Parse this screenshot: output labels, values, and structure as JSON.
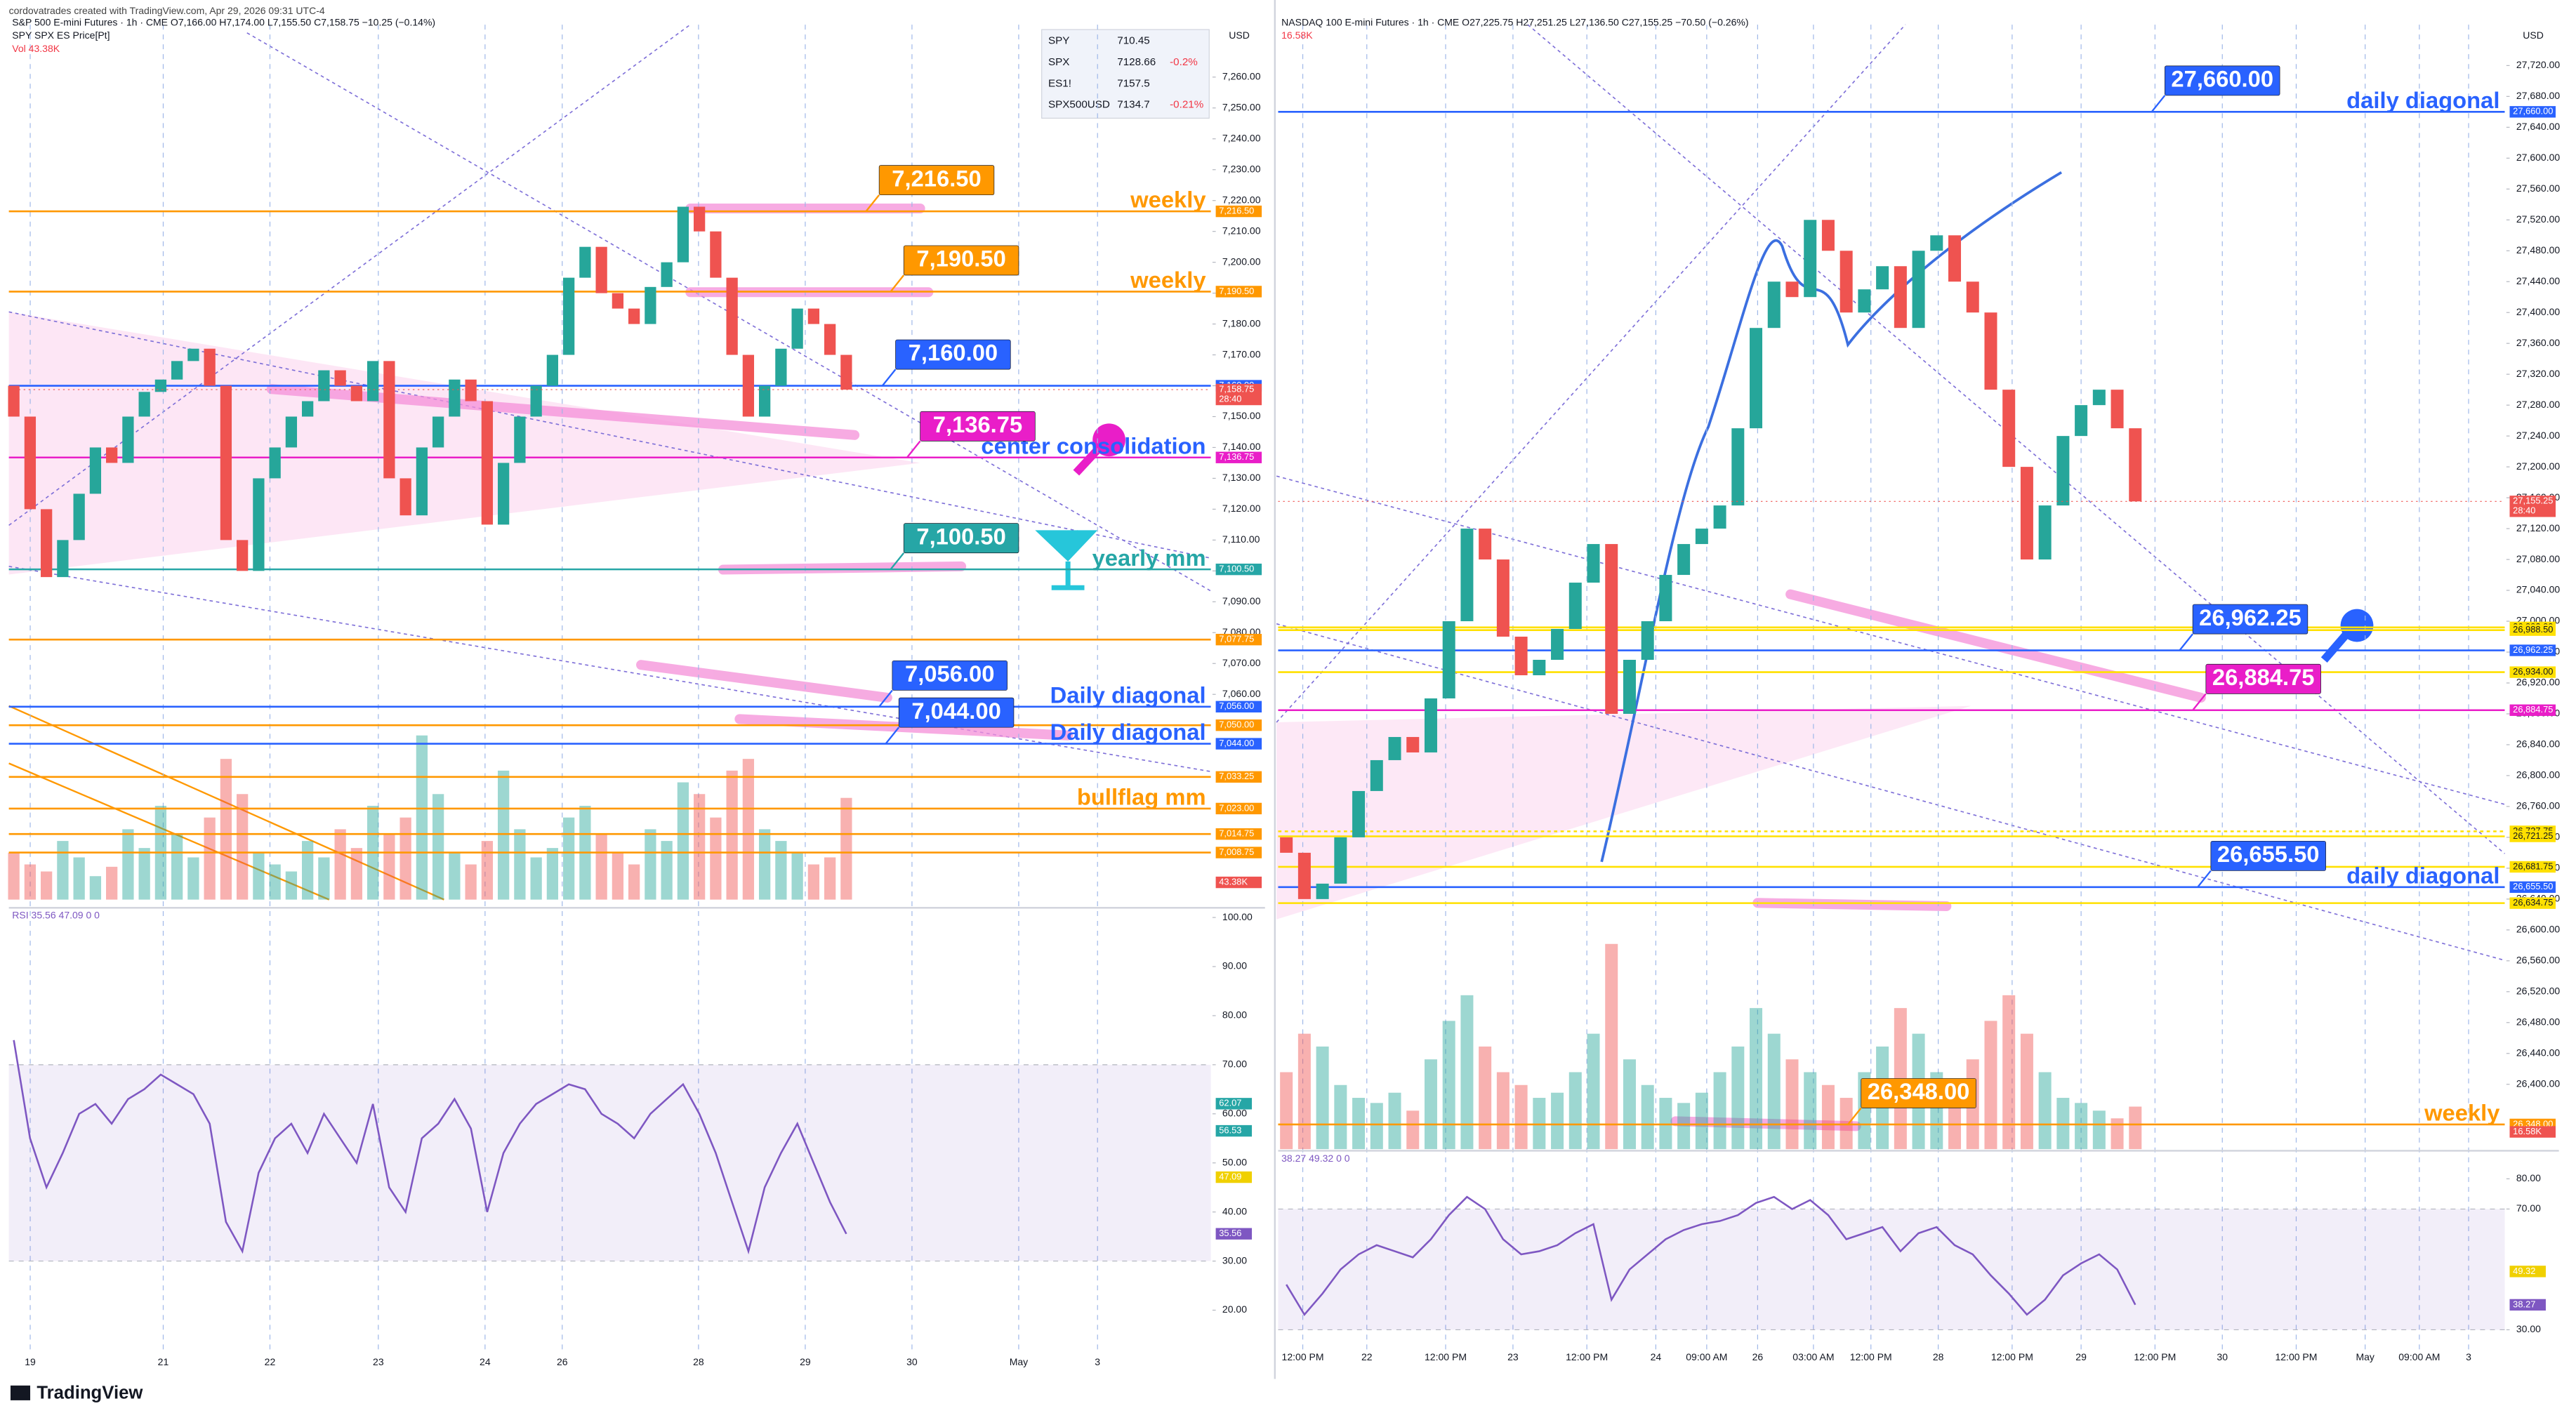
{
  "header": {
    "credit": "cordovatrades created with TradingView.com, Apr 29, 2026 09:31 UTC-4",
    "brand": "TradingView"
  },
  "watchlist": [
    {
      "symbol": "SPY",
      "price": "710.45",
      "change": ""
    },
    {
      "symbol": "SPX",
      "price": "7128.66",
      "change": "-0.2%"
    },
    {
      "symbol": "ES1!",
      "price": "7157.5",
      "change": ""
    },
    {
      "symbol": "SPX500USD",
      "price": "7134.7",
      "change": "-0.21%"
    }
  ],
  "chart_data": [
    {
      "type": "candlestick",
      "title": "S&P 500 E-mini Futures · 1h · CME  O7,166.00 H7,174.00 L7,155.50 C7,158.75 −10.25 (−0.14%)",
      "subtitle": "SPY SPX ES Price[Pt]",
      "volume_label": "Vol 43.38K",
      "currency": "USD",
      "open": 7160,
      "closes": [
        7150,
        7120,
        7098,
        7110,
        7125,
        7140,
        7135,
        7150,
        7158,
        7162,
        7168,
        7172,
        7160,
        7110,
        7100,
        7130,
        7140,
        7150,
        7155,
        7165,
        7160,
        7155,
        7168,
        7130,
        7118,
        7140,
        7150,
        7162,
        7155,
        7115,
        7135,
        7150,
        7160,
        7170,
        7195,
        7205,
        7190,
        7185,
        7180,
        7192,
        7200,
        7218,
        7210,
        7195,
        7170,
        7150,
        7160,
        7172,
        7185,
        7180,
        7170,
        7158.75
      ],
      "volume": [
        20,
        15,
        12,
        25,
        18,
        10,
        14,
        30,
        22,
        40,
        28,
        18,
        35,
        60,
        45,
        20,
        15,
        12,
        25,
        18,
        30,
        22,
        40,
        28,
        35,
        70,
        45,
        20,
        15,
        25,
        55,
        30,
        18,
        22,
        35,
        40,
        28,
        20,
        15,
        30,
        25,
        50,
        45,
        35,
        55,
        60,
        30,
        25,
        20,
        15,
        18,
        43.38
      ],
      "last_volume": "43.38K",
      "ylim": [
        6993.5,
        7277
      ],
      "yticks": [
        {
          "value": 7060,
          "label": "7,060.00"
        },
        {
          "value": 7070,
          "label": "7,070.00"
        },
        {
          "value": 7080,
          "label": "7,080.00"
        },
        {
          "value": 7090,
          "label": "7,090.00"
        },
        {
          "value": 7100,
          "label": "7,100.00"
        },
        {
          "value": 7110,
          "label": "7,110.00"
        },
        {
          "value": 7120,
          "label": "7,120.00"
        },
        {
          "value": 7130,
          "label": "7,130.00"
        },
        {
          "value": 7140,
          "label": "7,140.00"
        },
        {
          "value": 7150,
          "label": "7,150.00"
        },
        {
          "value": 7160,
          "label": "7,160.00"
        },
        {
          "value": 7170,
          "label": "7,170.00"
        },
        {
          "value": 7180,
          "label": "7,180.00"
        },
        {
          "value": 7190,
          "label": "7,190.00"
        },
        {
          "value": 7200,
          "label": "7,200.00"
        },
        {
          "value": 7210,
          "label": "7,210.00"
        },
        {
          "value": 7220,
          "label": "7,220.00"
        },
        {
          "value": 7230,
          "label": "7,230.00"
        },
        {
          "value": 7240,
          "label": "7,240.00"
        },
        {
          "value": 7250,
          "label": "7,250.00"
        },
        {
          "value": 7260,
          "label": "7,260.00"
        }
      ],
      "last": {
        "value": 7158.75,
        "label": "7,158.75",
        "countdown": "28:40"
      },
      "levels": [
        {
          "value": 7216.5,
          "label": "7,216.50",
          "color": "#ff9800",
          "note": "weekly",
          "boxed": true
        },
        {
          "value": 7190.5,
          "label": "7,190.50",
          "color": "#ff9800",
          "note": "weekly",
          "boxed": true
        },
        {
          "value": 7160,
          "label": "7,160.00",
          "color": "#2962ff",
          "boxed": true
        },
        {
          "value": 7136.75,
          "label": "7,136.75",
          "color": "#e91ec8",
          "note": "center consolidation",
          "boxed": true
        },
        {
          "value": 7100.5,
          "label": "7,100.50",
          "color": "#26a6a6",
          "note": "yearly mm",
          "boxed": true
        },
        {
          "value": 7077.75,
          "label": "7,077.75",
          "color": "#ff9800"
        },
        {
          "value": 7056,
          "label": "7,056.00",
          "color": "#2962ff",
          "note": "Daily diagonal",
          "boxed": true
        },
        {
          "value": 7050,
          "label": "7,050.00",
          "color": "#ff9800"
        },
        {
          "value": 7044,
          "label": "7,044.00",
          "color": "#2962ff",
          "note": "Daily diagonal",
          "boxed": true
        },
        {
          "value": 7033.25,
          "label": "7,033.25",
          "color": "#ff9800"
        },
        {
          "value": 7023,
          "label": "7,023.00",
          "color": "#ff9800",
          "note": "bullflag mm"
        },
        {
          "value": 7014.75,
          "label": "7,014.75",
          "color": "#ff9800"
        },
        {
          "value": 7008.75,
          "label": "7,008.75",
          "color": "#ff9800"
        }
      ],
      "rsi_title": "RSI  35.56  47.09  0  0",
      "rsi": [
        75,
        55,
        45,
        52,
        60,
        62,
        58,
        63,
        65,
        68,
        66,
        64,
        58,
        38,
        32,
        48,
        55,
        58,
        52,
        60,
        55,
        50,
        62,
        45,
        40,
        55,
        58,
        63,
        57,
        40,
        52,
        58,
        62,
        64,
        66,
        65,
        60,
        58,
        55,
        60,
        63,
        66,
        60,
        52,
        42,
        32,
        45,
        52,
        58,
        50,
        42,
        35.56
      ],
      "rsi_ylim": [
        11,
        101.3
      ],
      "rsi_yticks": [
        {
          "value": 20,
          "label": "20.00"
        },
        {
          "value": 30,
          "label": "30.00"
        },
        {
          "value": 40,
          "label": "40.00"
        },
        {
          "value": 50,
          "label": "50.00"
        },
        {
          "value": 60,
          "label": "60.00"
        },
        {
          "value": 70,
          "label": "70.00"
        },
        {
          "value": 80,
          "label": "80.00"
        },
        {
          "value": 90,
          "label": "90.00"
        },
        {
          "value": 100,
          "label": "100.00"
        }
      ],
      "rsi_band": [
        30,
        70
      ],
      "rsi_markers": [
        {
          "value": 62.07,
          "label": "62.07",
          "color": "#26a6a6"
        },
        {
          "value": 56.53,
          "label": "56.53",
          "color": "#26a6a6"
        },
        {
          "value": 47.09,
          "label": "47.09",
          "color": "#f0d000"
        },
        {
          "value": 35.56,
          "label": "35.56",
          "color": "#7e57c2"
        }
      ],
      "x_labels": [
        "19",
        "21",
        "22",
        "23",
        "24",
        "26",
        "28",
        "29",
        "30",
        "May",
        "3"
      ]
    },
    {
      "type": "candlestick",
      "title": "NASDAQ 100 E-mini Futures · 1h · CME  O27,225.75 H27,251.25 L27,136.50 C27,155.25 −70.50 (−0.26%)",
      "subtitle": "",
      "volume_label": "16.58K",
      "currency": "USD",
      "open": 26720,
      "closes": [
        26700,
        26640,
        26660,
        26720,
        26780,
        26820,
        26850,
        26830,
        26900,
        27000,
        27120,
        27080,
        26980,
        26930,
        26950,
        26990,
        27050,
        27100,
        26880,
        26950,
        27000,
        27060,
        27100,
        27120,
        27150,
        27250,
        27380,
        27440,
        27420,
        27520,
        27480,
        27400,
        27430,
        27460,
        27380,
        27480,
        27500,
        27440,
        27400,
        27300,
        27200,
        27080,
        27150,
        27240,
        27280,
        27300,
        27250,
        27155.25
      ],
      "volume": [
        30,
        45,
        40,
        25,
        20,
        18,
        22,
        15,
        35,
        50,
        60,
        40,
        30,
        25,
        20,
        22,
        30,
        45,
        80,
        35,
        25,
        20,
        18,
        22,
        30,
        40,
        55,
        45,
        35,
        30,
        25,
        20,
        30,
        40,
        55,
        45,
        30,
        25,
        35,
        50,
        60,
        45,
        30,
        20,
        18,
        15,
        12,
        16.58
      ],
      "last_volume": "16.58K",
      "ylim": [
        26316,
        27773
      ],
      "yticks": [
        {
          "value": 26400,
          "label": "26,400.00"
        },
        {
          "value": 26440,
          "label": "26,440.00"
        },
        {
          "value": 26480,
          "label": "26,480.00"
        },
        {
          "value": 26520,
          "label": "26,520.00"
        },
        {
          "value": 26560,
          "label": "26,560.00"
        },
        {
          "value": 26600,
          "label": "26,600.00"
        },
        {
          "value": 26640,
          "label": "26,640.00"
        },
        {
          "value": 26680,
          "label": "26,680.00"
        },
        {
          "value": 26720,
          "label": "26,720.00"
        },
        {
          "value": 26760,
          "label": "26,760.00"
        },
        {
          "value": 26800,
          "label": "26,800.00"
        },
        {
          "value": 26840,
          "label": "26,840.00"
        },
        {
          "value": 26880,
          "label": "26,880.00"
        },
        {
          "value": 26920,
          "label": "26,920.00"
        },
        {
          "value": 26960,
          "label": "26,960.00"
        },
        {
          "value": 27000,
          "label": "27,000.00"
        },
        {
          "value": 27040,
          "label": "27,040.00"
        },
        {
          "value": 27080,
          "label": "27,080.00"
        },
        {
          "value": 27120,
          "label": "27,120.00"
        },
        {
          "value": 27160,
          "label": "27,160.00"
        },
        {
          "value": 27200,
          "label": "27,200.00"
        },
        {
          "value": 27240,
          "label": "27,240.00"
        },
        {
          "value": 27280,
          "label": "27,280.00"
        },
        {
          "value": 27320,
          "label": "27,320.00"
        },
        {
          "value": 27360,
          "label": "27,360.00"
        },
        {
          "value": 27400,
          "label": "27,400.00"
        },
        {
          "value": 27440,
          "label": "27,440.00"
        },
        {
          "value": 27480,
          "label": "27,480.00"
        },
        {
          "value": 27520,
          "label": "27,520.00"
        },
        {
          "value": 27560,
          "label": "27,560.00"
        },
        {
          "value": 27600,
          "label": "27,600.00"
        },
        {
          "value": 27640,
          "label": "27,640.00"
        },
        {
          "value": 27680,
          "label": "27,680.00"
        },
        {
          "value": 27720,
          "label": "27,720.00"
        }
      ],
      "last": {
        "value": 27155.25,
        "label": "27,155.25",
        "countdown": "28:40"
      },
      "levels": [
        {
          "value": 27660,
          "label": "27,660.00",
          "color": "#2962ff",
          "note": "daily diagonal",
          "boxed": true
        },
        {
          "value": 26992,
          "label": "26,992.00",
          "color": "#ffe000"
        },
        {
          "value": 26988.5,
          "label": "26,988.50",
          "color": "#ffe000"
        },
        {
          "value": 26962.25,
          "label": "26,962.25",
          "color": "#2962ff",
          "boxed": true
        },
        {
          "value": 26934,
          "label": "26,934.00",
          "color": "#ffe000"
        },
        {
          "value": 26884.75,
          "label": "26,884.75",
          "color": "#e91ec8",
          "boxed": true
        },
        {
          "value": 26727.75,
          "label": "26,727.75",
          "color": "#ffe000",
          "style": "dotted"
        },
        {
          "value": 26721.25,
          "label": "26,721.25",
          "color": "#ffe000"
        },
        {
          "value": 26681.75,
          "label": "26,681.75",
          "color": "#ffe000"
        },
        {
          "value": 26655.5,
          "label": "26,655.50",
          "color": "#2962ff",
          "note": "daily diagonal",
          "boxed": true
        },
        {
          "value": 26634.75,
          "label": "26,634.75",
          "color": "#ffe000"
        },
        {
          "value": 26348,
          "label": "26,348.00",
          "color": "#ff9800",
          "note": "weekly",
          "boxed": true
        }
      ],
      "rsi_title": "38.27  49.32  0  0",
      "rsi": [
        45,
        35,
        42,
        50,
        55,
        58,
        56,
        54,
        60,
        68,
        74,
        70,
        60,
        55,
        56,
        58,
        62,
        65,
        40,
        50,
        55,
        60,
        63,
        65,
        66,
        68,
        72,
        74,
        70,
        73,
        68,
        60,
        62,
        64,
        56,
        62,
        64,
        58,
        55,
        48,
        42,
        35,
        40,
        48,
        52,
        55,
        50,
        38.27
      ],
      "rsi_ylim": [
        23.5,
        88.2
      ],
      "rsi_yticks": [
        {
          "value": 30,
          "label": "30.00"
        },
        {
          "value": 70,
          "label": "70.00"
        },
        {
          "value": 80,
          "label": "80.00"
        }
      ],
      "rsi_band": [
        30,
        70
      ],
      "rsi_markers": [
        {
          "value": 49.32,
          "label": "49.32",
          "color": "#f0d000"
        },
        {
          "value": 38.27,
          "label": "38.27",
          "color": "#7e57c2"
        }
      ],
      "x_labels": [
        "12:00 PM",
        "22",
        "12:00 PM",
        "23",
        "12:00 PM",
        "24",
        "09:00 AM",
        "26",
        "03:00 AM",
        "12:00 PM",
        "28",
        "12:00 PM",
        "29",
        "12:00 PM",
        "30",
        "12:00 PM",
        "May",
        "09:00 AM",
        "3"
      ]
    }
  ]
}
